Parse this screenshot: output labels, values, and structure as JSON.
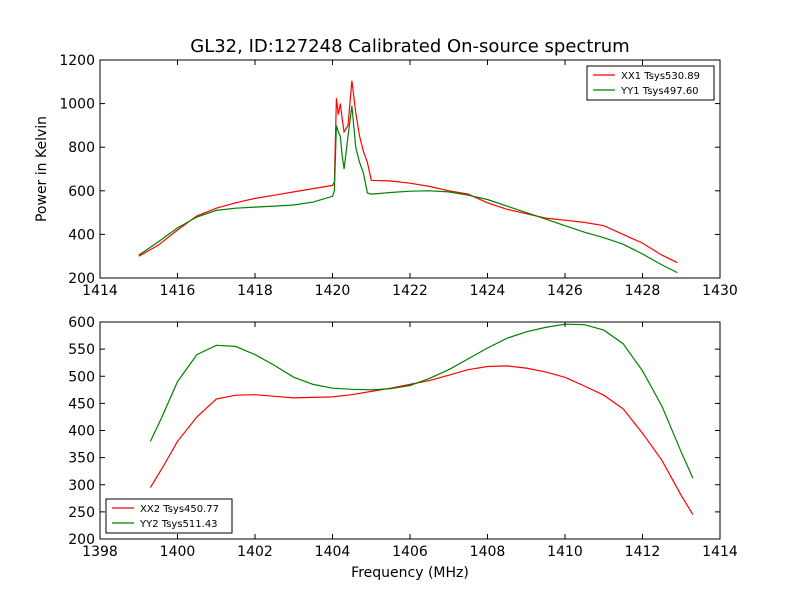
{
  "chart_data": [
    {
      "type": "line",
      "title": "GL32, ID:127248 Calibrated On-source spectrum",
      "xlabel": "",
      "ylabel": "Power in Kelvin",
      "xlim": [
        1414,
        1430
      ],
      "ylim": [
        200,
        1200
      ],
      "xticks": [
        1414,
        1416,
        1418,
        1420,
        1422,
        1424,
        1426,
        1428,
        1430
      ],
      "yticks": [
        200,
        400,
        600,
        800,
        1000,
        1200
      ],
      "grid": false,
      "legend_position": "top-right",
      "series": [
        {
          "name": "XX1 Tsys530.89",
          "color": "#ff0000",
          "points": [
            [
              1415.0,
              300
            ],
            [
              1415.5,
              350
            ],
            [
              1416.0,
              420
            ],
            [
              1416.5,
              485
            ],
            [
              1417.0,
              520
            ],
            [
              1417.5,
              545
            ],
            [
              1418.0,
              565
            ],
            [
              1418.5,
              580
            ],
            [
              1419.0,
              595
            ],
            [
              1419.5,
              610
            ],
            [
              1420.0,
              625
            ],
            [
              1420.05,
              640
            ],
            [
              1420.1,
              1025
            ],
            [
              1420.15,
              950
            ],
            [
              1420.2,
              1000
            ],
            [
              1420.25,
              930
            ],
            [
              1420.3,
              870
            ],
            [
              1420.4,
              900
            ],
            [
              1420.5,
              1105
            ],
            [
              1420.6,
              960
            ],
            [
              1420.7,
              850
            ],
            [
              1420.8,
              780
            ],
            [
              1420.9,
              730
            ],
            [
              1421.0,
              648
            ],
            [
              1421.5,
              645
            ],
            [
              1422.0,
              635
            ],
            [
              1422.5,
              620
            ],
            [
              1423.0,
              600
            ],
            [
              1423.5,
              585
            ],
            [
              1424.0,
              545
            ],
            [
              1424.5,
              515
            ],
            [
              1425.0,
              495
            ],
            [
              1425.5,
              475
            ],
            [
              1426.0,
              465
            ],
            [
              1426.5,
              455
            ],
            [
              1427.0,
              440
            ],
            [
              1427.5,
              400
            ],
            [
              1428.0,
              360
            ],
            [
              1428.5,
              305
            ],
            [
              1428.9,
              270
            ]
          ]
        },
        {
          "name": "YY1 Tsys497.60",
          "color": "#008000",
          "points": [
            [
              1415.0,
              305
            ],
            [
              1415.5,
              365
            ],
            [
              1416.0,
              430
            ],
            [
              1416.5,
              480
            ],
            [
              1417.0,
              510
            ],
            [
              1417.5,
              520
            ],
            [
              1418.0,
              525
            ],
            [
              1418.5,
              530
            ],
            [
              1419.0,
              535
            ],
            [
              1419.5,
              548
            ],
            [
              1420.0,
              575
            ],
            [
              1420.05,
              600
            ],
            [
              1420.1,
              900
            ],
            [
              1420.15,
              870
            ],
            [
              1420.2,
              850
            ],
            [
              1420.25,
              760
            ],
            [
              1420.3,
              700
            ],
            [
              1420.4,
              850
            ],
            [
              1420.5,
              990
            ],
            [
              1420.6,
              800
            ],
            [
              1420.7,
              730
            ],
            [
              1420.8,
              680
            ],
            [
              1420.9,
              590
            ],
            [
              1421.0,
              585
            ],
            [
              1421.5,
              592
            ],
            [
              1422.0,
              598
            ],
            [
              1422.5,
              600
            ],
            [
              1423.0,
              595
            ],
            [
              1423.5,
              580
            ],
            [
              1424.0,
              560
            ],
            [
              1424.5,
              530
            ],
            [
              1425.0,
              500
            ],
            [
              1425.5,
              470
            ],
            [
              1426.0,
              440
            ],
            [
              1426.5,
              410
            ],
            [
              1427.0,
              385
            ],
            [
              1427.5,
              355
            ],
            [
              1428.0,
              310
            ],
            [
              1428.5,
              260
            ],
            [
              1428.9,
              225
            ]
          ]
        }
      ]
    },
    {
      "type": "line",
      "title": "",
      "xlabel": "Frequency (MHz)",
      "ylabel": "",
      "xlim": [
        1398,
        1414
      ],
      "ylim": [
        200,
        600
      ],
      "xticks": [
        1398,
        1400,
        1402,
        1404,
        1406,
        1408,
        1410,
        1412,
        1414
      ],
      "yticks": [
        200,
        250,
        300,
        350,
        400,
        450,
        500,
        550,
        600
      ],
      "grid": false,
      "legend_position": "bottom-left",
      "series": [
        {
          "name": "XX2 Tsys450.77",
          "color": "#ff0000",
          "points": [
            [
              1399.3,
              295
            ],
            [
              1399.6,
              330
            ],
            [
              1400.0,
              380
            ],
            [
              1400.5,
              425
            ],
            [
              1401.0,
              458
            ],
            [
              1401.5,
              465
            ],
            [
              1402.0,
              466
            ],
            [
              1402.5,
              463
            ],
            [
              1403.0,
              460
            ],
            [
              1403.5,
              461
            ],
            [
              1404.0,
              462
            ],
            [
              1404.5,
              466
            ],
            [
              1405.0,
              472
            ],
            [
              1405.5,
              478
            ],
            [
              1406.0,
              485
            ],
            [
              1406.5,
              492
            ],
            [
              1407.0,
              502
            ],
            [
              1407.5,
              512
            ],
            [
              1408.0,
              518
            ],
            [
              1408.5,
              519
            ],
            [
              1409.0,
              515
            ],
            [
              1409.5,
              508
            ],
            [
              1410.0,
              498
            ],
            [
              1410.5,
              482
            ],
            [
              1411.0,
              465
            ],
            [
              1411.5,
              440
            ],
            [
              1412.0,
              395
            ],
            [
              1412.5,
              345
            ],
            [
              1413.0,
              280
            ],
            [
              1413.3,
              245
            ]
          ]
        },
        {
          "name": "YY2 Tsys511.43",
          "color": "#008000",
          "points": [
            [
              1399.3,
              380
            ],
            [
              1399.6,
              425
            ],
            [
              1400.0,
              490
            ],
            [
              1400.5,
              540
            ],
            [
              1401.0,
              557
            ],
            [
              1401.5,
              555
            ],
            [
              1402.0,
              540
            ],
            [
              1402.5,
              520
            ],
            [
              1403.0,
              498
            ],
            [
              1403.5,
              485
            ],
            [
              1404.0,
              478
            ],
            [
              1404.5,
              476
            ],
            [
              1405.0,
              475
            ],
            [
              1405.5,
              477
            ],
            [
              1406.0,
              483
            ],
            [
              1406.5,
              496
            ],
            [
              1407.0,
              512
            ],
            [
              1407.5,
              532
            ],
            [
              1408.0,
              552
            ],
            [
              1408.5,
              570
            ],
            [
              1409.0,
              582
            ],
            [
              1409.5,
              590
            ],
            [
              1410.0,
              596
            ],
            [
              1410.5,
              595
            ],
            [
              1411.0,
              585
            ],
            [
              1411.5,
              560
            ],
            [
              1412.0,
              510
            ],
            [
              1412.5,
              445
            ],
            [
              1413.0,
              360
            ],
            [
              1413.3,
              312
            ]
          ]
        }
      ]
    }
  ]
}
